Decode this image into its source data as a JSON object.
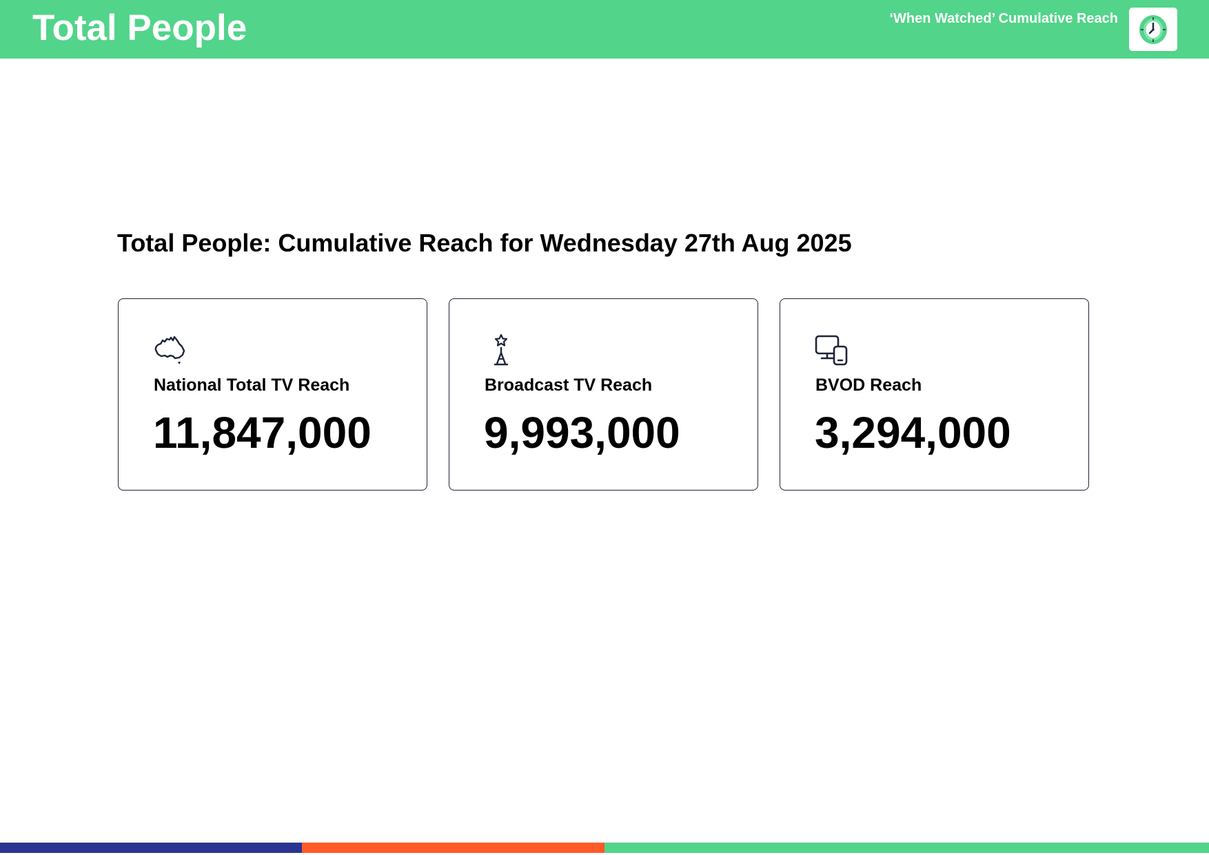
{
  "header": {
    "title": "Total People",
    "subtitle": "‘When Watched’ Cumulative Reach",
    "logo_icon": "clock-icon",
    "background_color": "#52d48a"
  },
  "main": {
    "section_title": "Total People: Cumulative Reach for Wednesday 27th Aug 2025",
    "cards": [
      {
        "icon": "australia-map-icon",
        "label": "National Total TV Reach",
        "value": "11,847,000"
      },
      {
        "icon": "broadcast-tower-icon",
        "label": "Broadcast TV Reach",
        "value": "9,993,000"
      },
      {
        "icon": "devices-icon",
        "label": "BVOD Reach",
        "value": "3,294,000"
      }
    ]
  },
  "footer": {
    "stripe_colors": [
      "#2b3491",
      "#ff5a28",
      "#52d48a"
    ]
  },
  "colors": {
    "accent_green": "#52d48a",
    "card_border": "#1e2437",
    "text": "#000000"
  }
}
